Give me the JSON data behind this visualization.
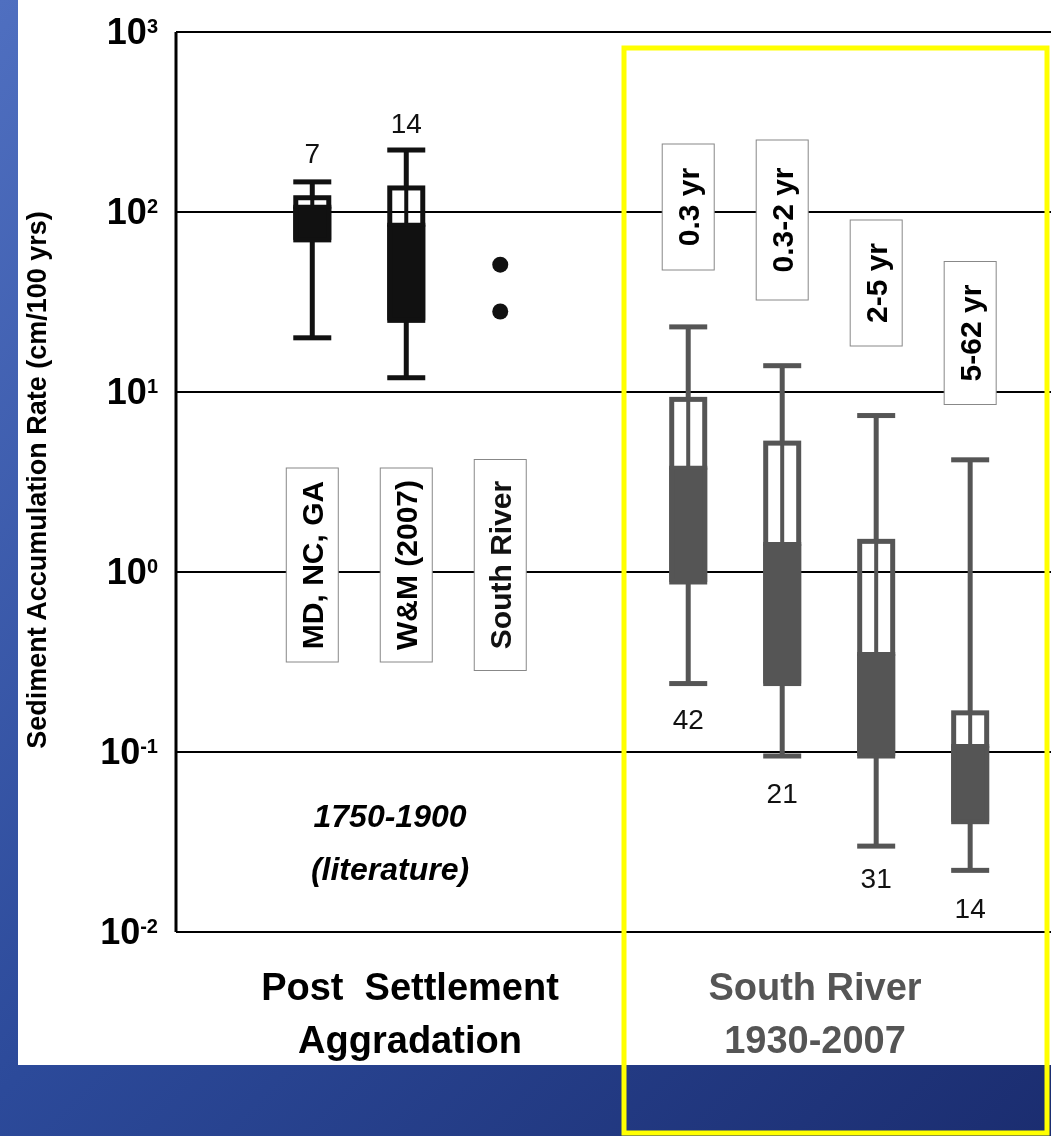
{
  "chart_data": {
    "type": "box",
    "ylabel": "Sediment Accumulation Rate (cm/100 yrs)",
    "categories": [
      "MD, NC, GA",
      "W&M (2007)",
      "South River",
      null,
      "0.3 yr",
      "0.3-2 yr",
      "2-5 yr",
      "5-62 yr"
    ],
    "log": true,
    "grid": "y",
    "ylim": [
      0.01,
      1000
    ],
    "yticks": [
      {
        "value": 0.01,
        "label": "10$^{-2}$"
      },
      {
        "value": 0.1,
        "label": "10$^{-1}$"
      },
      {
        "value": 1,
        "label": "10$^{0}$"
      },
      {
        "value": 10,
        "label": "10$^{1}$"
      },
      {
        "value": 100,
        "label": "10$^{2}$"
      },
      {
        "value": 1000,
        "label": "10$^{3}$"
      }
    ],
    "series": [
      {
        "color": "#111111",
        "boxes": [
          {
            "low": 20,
            "q1": 70,
            "median": 107,
            "q3": 120,
            "high": 147
          },
          {
            "low": 12,
            "q1": 25,
            "median": 85,
            "q3": 136,
            "high": 221
          },
          null,
          null,
          null,
          null,
          null,
          null
        ]
      },
      {
        "type": "scatter",
        "color": "#111111",
        "x": [
          "South River",
          "South River"
        ],
        "values": [
          51,
          28
        ]
      },
      {
        "color": "#555555",
        "boxes": [
          null,
          null,
          null,
          null,
          {
            "low": 0.24,
            "q1": 0.88,
            "median": 3.8,
            "q3": 9.1,
            "high": 23
          },
          {
            "low": 0.095,
            "q1": 0.24,
            "median": 1.43,
            "q3": 5.2,
            "high": 14
          },
          {
            "low": 0.03,
            "q1": 0.095,
            "median": 0.35,
            "q3": 1.48,
            "high": 7.4
          },
          {
            "low": 0.022,
            "q1": 0.041,
            "median": 0.108,
            "q3": 0.165,
            "high": 4.2
          }
        ]
      }
    ],
    "annotations": [
      "7",
      "14",
      "42",
      "21",
      "31",
      "14",
      "1750-1900\n(literature)",
      "Post  Settlement\nAggradation",
      "South River\n1930-2007"
    ]
  }
}
